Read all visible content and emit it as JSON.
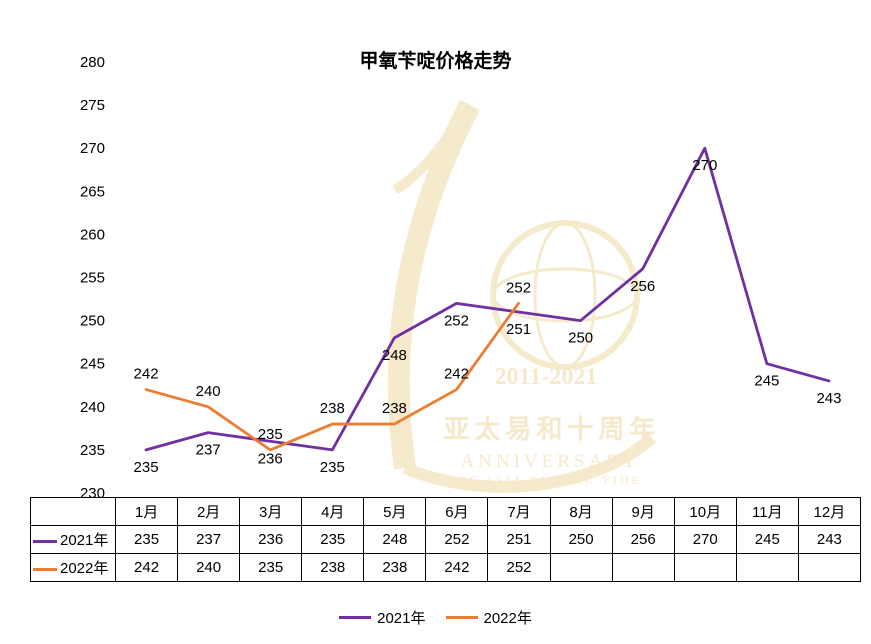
{
  "title": "甲氧苄啶价格走势",
  "chart_data": {
    "type": "line",
    "categories": [
      "1月",
      "2月",
      "3月",
      "4月",
      "5月",
      "6月",
      "7月",
      "8月",
      "9月",
      "10月",
      "11月",
      "12月"
    ],
    "series": [
      {
        "name": "2021年",
        "color": "#7030A0",
        "label_position": "below",
        "values": [
          235,
          237,
          236,
          235,
          248,
          252,
          251,
          250,
          256,
          270,
          245,
          243
        ]
      },
      {
        "name": "2022年",
        "color": "#ED7D31",
        "label_position": "above",
        "values": [
          242,
          240,
          235,
          238,
          238,
          242,
          252
        ]
      }
    ],
    "ylim": [
      230,
      280
    ],
    "ytick_step": 5,
    "grid": false,
    "legend_position": "bottom"
  },
  "watermark": {
    "years": "2011-2021",
    "cn_line": "亚太易和十周年",
    "en_line1": "ANNIVERSARY",
    "en_line2": "OF ASIA PACIFIC YIHE"
  }
}
